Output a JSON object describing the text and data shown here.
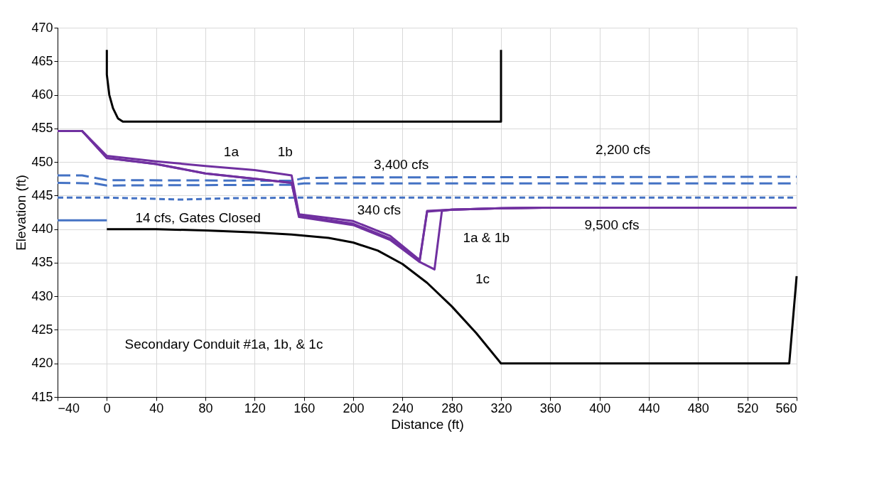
{
  "chart_data": {
    "type": "line",
    "xlabel": "Distance (ft)",
    "ylabel": "Elevation (ft)",
    "xlim": [
      -40,
      560
    ],
    "xticks": [
      -40,
      0,
      40,
      80,
      120,
      160,
      200,
      240,
      280,
      320,
      360,
      400,
      440,
      480,
      520,
      560
    ],
    "ylim": [
      415,
      470
    ],
    "yticks": [
      415,
      420,
      425,
      430,
      435,
      440,
      445,
      450,
      455,
      460,
      465,
      470
    ],
    "grid": true,
    "marker": "none",
    "series": [
      {
        "color": "#000000",
        "line_style": "solid",
        "x": [
          0,
          0,
          2,
          5,
          9,
          13,
          320,
          320
        ],
        "values": [
          466.7,
          463,
          460,
          458,
          456.5,
          456,
          456,
          466.7
        ]
      },
      {
        "color": "#000000",
        "line_style": "solid",
        "x": [
          0,
          40,
          80,
          120,
          150,
          180,
          200,
          220,
          240,
          260,
          280,
          300,
          320,
          554,
          560
        ],
        "values": [
          440,
          440,
          439.8,
          439.5,
          439.2,
          438.7,
          438,
          436.8,
          434.8,
          432,
          428.5,
          424.5,
          420,
          420,
          433
        ]
      },
      {
        "color": "#4472c4",
        "line_style": "solid",
        "x": [
          -40,
          0
        ],
        "values": [
          441.3,
          441.3
        ]
      },
      {
        "color": "#4472c4",
        "line_style": "dotted",
        "x": [
          -40,
          0,
          40,
          60,
          100,
          160,
          560
        ],
        "values": [
          444.7,
          444.7,
          444.5,
          444.4,
          444.6,
          444.7,
          444.7
        ]
      },
      {
        "color": "#4472c4",
        "line_style": "dashed",
        "x": [
          -40,
          -10,
          0,
          150,
          160,
          560
        ],
        "values": [
          446.9,
          446.8,
          446.5,
          446.6,
          446.8,
          446.8
        ]
      },
      {
        "color": "#4472c4",
        "line_style": "dashed",
        "x": [
          -40,
          -20,
          0,
          150,
          160,
          200,
          560
        ],
        "values": [
          448.0,
          448.0,
          447.3,
          447.2,
          447.6,
          447.7,
          447.8
        ]
      },
      {
        "color": "#7030a0",
        "line_style": "solid",
        "x": [
          -40,
          -20,
          0,
          40,
          80,
          120,
          150,
          156,
          200,
          230,
          254,
          260,
          280,
          320,
          360,
          560
        ],
        "values": [
          454.6,
          454.6,
          450.9,
          450.1,
          449.4,
          448.8,
          448.0,
          442.2,
          441.2,
          439,
          435.4,
          442.7,
          442.9,
          443.1,
          443.2,
          443.2
        ]
      },
      {
        "color": "#7030a0",
        "line_style": "solid",
        "x": [
          -40,
          -20,
          0,
          40,
          80,
          120,
          150,
          156,
          200,
          230,
          254,
          260,
          280,
          320,
          360,
          560
        ],
        "values": [
          454.6,
          454.6,
          450.6,
          449.7,
          448.3,
          447.5,
          446.9,
          442.0,
          440.8,
          438.6,
          435.3,
          442.6,
          442.9,
          443.1,
          443.2,
          443.2
        ]
      },
      {
        "color": "#7030a0",
        "line_style": "solid",
        "x": [
          -40,
          -20,
          0,
          40,
          80,
          120,
          150,
          156,
          200,
          230,
          254,
          266,
          272,
          280,
          320,
          360,
          560
        ],
        "values": [
          454.6,
          454.6,
          450.6,
          449.7,
          448.3,
          447.5,
          446.9,
          441.8,
          440.6,
          438.4,
          435.1,
          434.0,
          442.7,
          442.9,
          443.1,
          443.2,
          443.2
        ]
      }
    ],
    "annotations": [
      "1a",
      "1b",
      "3,400 cfs",
      "2,200 cfs",
      "340 cfs",
      "14 cfs, Gates Closed",
      "1a & 1b",
      "1c",
      "9,500 cfs",
      "Secondary Conduit #1a, 1b, & 1c"
    ]
  }
}
